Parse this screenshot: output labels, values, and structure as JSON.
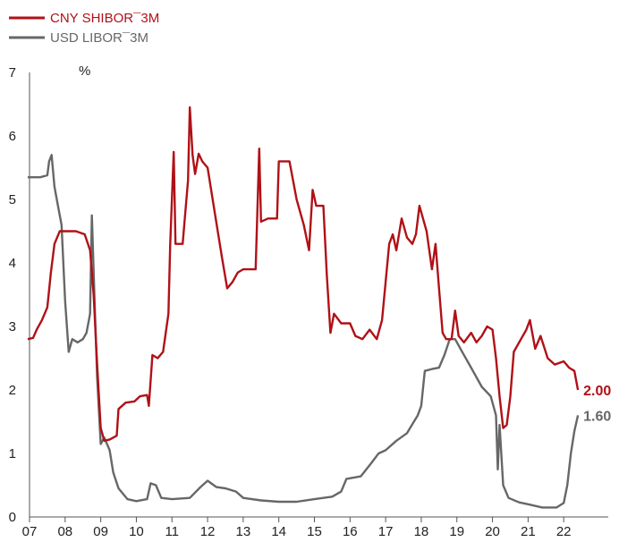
{
  "chart_data": {
    "type": "line",
    "ylabel": "%",
    "ylim": [
      0,
      7
    ],
    "xlim": [
      2007.0,
      2023.0
    ],
    "yticks": [
      "0",
      "1",
      "2",
      "3",
      "4",
      "5",
      "6",
      "7"
    ],
    "xticks": [
      {
        "label": "07",
        "x": 2007.0
      },
      {
        "label": "08",
        "x": 2008.0
      },
      {
        "label": "09",
        "x": 2009.0
      },
      {
        "label": "10",
        "x": 2010.0
      },
      {
        "label": "11",
        "x": 2011.0
      },
      {
        "label": "12",
        "x": 2012.0
      },
      {
        "label": "13",
        "x": 2013.0
      },
      {
        "label": "14",
        "x": 2014.0
      },
      {
        "label": "15",
        "x": 2015.0
      },
      {
        "label": "16",
        "x": 2016.0
      },
      {
        "label": "17",
        "x": 2017.0
      },
      {
        "label": "18",
        "x": 2018.0
      },
      {
        "label": "19",
        "x": 2019.0
      },
      {
        "label": "20",
        "x": 2020.0
      },
      {
        "label": "21",
        "x": 2021.0
      },
      {
        "label": "22",
        "x": 2022.0
      }
    ],
    "grid": false,
    "legend_position": "top-left",
    "series": [
      {
        "name": "CNY SHIBOR¯3M",
        "color": "#b01117",
        "end_label": "2.00",
        "points": [
          [
            2006.95,
            2.8
          ],
          [
            2007.1,
            2.82
          ],
          [
            2007.2,
            2.95
          ],
          [
            2007.35,
            3.1
          ],
          [
            2007.5,
            3.3
          ],
          [
            2007.6,
            3.85
          ],
          [
            2007.7,
            4.3
          ],
          [
            2007.85,
            4.5
          ],
          [
            2008.0,
            4.5
          ],
          [
            2008.3,
            4.5
          ],
          [
            2008.55,
            4.45
          ],
          [
            2008.7,
            4.2
          ],
          [
            2008.8,
            3.5
          ],
          [
            2008.9,
            2.4
          ],
          [
            2009.0,
            1.4
          ],
          [
            2009.1,
            1.2
          ],
          [
            2009.25,
            1.22
          ],
          [
            2009.45,
            1.28
          ],
          [
            2009.5,
            1.7
          ],
          [
            2009.7,
            1.8
          ],
          [
            2009.95,
            1.82
          ],
          [
            2010.1,
            1.9
          ],
          [
            2010.3,
            1.92
          ],
          [
            2010.35,
            1.75
          ],
          [
            2010.45,
            2.55
          ],
          [
            2010.6,
            2.5
          ],
          [
            2010.75,
            2.6
          ],
          [
            2010.9,
            3.2
          ],
          [
            2010.95,
            4.3
          ],
          [
            2011.05,
            5.75
          ],
          [
            2011.1,
            4.3
          ],
          [
            2011.3,
            4.3
          ],
          [
            2011.45,
            5.3
          ],
          [
            2011.5,
            6.45
          ],
          [
            2011.58,
            5.7
          ],
          [
            2011.65,
            5.4
          ],
          [
            2011.75,
            5.72
          ],
          [
            2011.85,
            5.6
          ],
          [
            2012.0,
            5.5
          ],
          [
            2012.2,
            4.8
          ],
          [
            2012.4,
            4.1
          ],
          [
            2012.55,
            3.6
          ],
          [
            2012.7,
            3.7
          ],
          [
            2012.85,
            3.85
          ],
          [
            2013.0,
            3.9
          ],
          [
            2013.2,
            3.9
          ],
          [
            2013.35,
            3.9
          ],
          [
            2013.45,
            5.8
          ],
          [
            2013.5,
            4.65
          ],
          [
            2013.7,
            4.7
          ],
          [
            2013.95,
            4.7
          ],
          [
            2014.0,
            5.6
          ],
          [
            2014.3,
            5.6
          ],
          [
            2014.5,
            5.0
          ],
          [
            2014.7,
            4.6
          ],
          [
            2014.85,
            4.2
          ],
          [
            2014.95,
            5.15
          ],
          [
            2015.05,
            4.9
          ],
          [
            2015.25,
            4.9
          ],
          [
            2015.35,
            3.8
          ],
          [
            2015.45,
            2.9
          ],
          [
            2015.55,
            3.2
          ],
          [
            2015.75,
            3.05
          ],
          [
            2016.0,
            3.05
          ],
          [
            2016.15,
            2.85
          ],
          [
            2016.35,
            2.8
          ],
          [
            2016.55,
            2.95
          ],
          [
            2016.75,
            2.8
          ],
          [
            2016.9,
            3.1
          ],
          [
            2017.0,
            3.7
          ],
          [
            2017.1,
            4.3
          ],
          [
            2017.2,
            4.45
          ],
          [
            2017.3,
            4.2
          ],
          [
            2017.45,
            4.7
          ],
          [
            2017.6,
            4.4
          ],
          [
            2017.75,
            4.3
          ],
          [
            2017.85,
            4.45
          ],
          [
            2017.95,
            4.9
          ],
          [
            2018.05,
            4.7
          ],
          [
            2018.15,
            4.5
          ],
          [
            2018.3,
            3.9
          ],
          [
            2018.4,
            4.3
          ],
          [
            2018.5,
            3.6
          ],
          [
            2018.6,
            2.9
          ],
          [
            2018.7,
            2.8
          ],
          [
            2018.85,
            2.8
          ],
          [
            2018.95,
            3.25
          ],
          [
            2019.05,
            2.85
          ],
          [
            2019.2,
            2.75
          ],
          [
            2019.4,
            2.9
          ],
          [
            2019.55,
            2.75
          ],
          [
            2019.7,
            2.85
          ],
          [
            2019.85,
            3.0
          ],
          [
            2020.0,
            2.95
          ],
          [
            2020.1,
            2.5
          ],
          [
            2020.2,
            1.9
          ],
          [
            2020.3,
            1.4
          ],
          [
            2020.4,
            1.45
          ],
          [
            2020.5,
            1.9
          ],
          [
            2020.6,
            2.6
          ],
          [
            2020.8,
            2.8
          ],
          [
            2020.95,
            2.95
          ],
          [
            2021.05,
            3.1
          ],
          [
            2021.2,
            2.65
          ],
          [
            2021.35,
            2.85
          ],
          [
            2021.55,
            2.5
          ],
          [
            2021.75,
            2.4
          ],
          [
            2022.0,
            2.45
          ],
          [
            2022.15,
            2.35
          ],
          [
            2022.3,
            2.3
          ],
          [
            2022.4,
            2.0
          ]
        ]
      },
      {
        "name": "USD LIBOR¯3M",
        "color": "#676767",
        "end_label": "1.60",
        "points": [
          [
            2006.95,
            5.35
          ],
          [
            2007.3,
            5.35
          ],
          [
            2007.5,
            5.38
          ],
          [
            2007.55,
            5.6
          ],
          [
            2007.62,
            5.7
          ],
          [
            2007.7,
            5.2
          ],
          [
            2007.8,
            4.9
          ],
          [
            2007.9,
            4.6
          ],
          [
            2008.0,
            3.4
          ],
          [
            2008.1,
            2.6
          ],
          [
            2008.2,
            2.8
          ],
          [
            2008.35,
            2.75
          ],
          [
            2008.5,
            2.8
          ],
          [
            2008.6,
            2.9
          ],
          [
            2008.7,
            3.2
          ],
          [
            2008.75,
            4.75
          ],
          [
            2008.82,
            3.5
          ],
          [
            2008.9,
            2.2
          ],
          [
            2009.0,
            1.15
          ],
          [
            2009.1,
            1.25
          ],
          [
            2009.25,
            1.05
          ],
          [
            2009.35,
            0.7
          ],
          [
            2009.5,
            0.45
          ],
          [
            2009.75,
            0.28
          ],
          [
            2010.0,
            0.25
          ],
          [
            2010.3,
            0.28
          ],
          [
            2010.4,
            0.53
          ],
          [
            2010.55,
            0.5
          ],
          [
            2010.7,
            0.3
          ],
          [
            2011.0,
            0.28
          ],
          [
            2011.5,
            0.3
          ],
          [
            2011.8,
            0.47
          ],
          [
            2012.0,
            0.57
          ],
          [
            2012.25,
            0.47
          ],
          [
            2012.5,
            0.45
          ],
          [
            2012.8,
            0.4
          ],
          [
            2013.0,
            0.3
          ],
          [
            2013.5,
            0.26
          ],
          [
            2014.0,
            0.24
          ],
          [
            2014.5,
            0.24
          ],
          [
            2015.0,
            0.28
          ],
          [
            2015.5,
            0.32
          ],
          [
            2015.75,
            0.4
          ],
          [
            2015.9,
            0.6
          ],
          [
            2016.3,
            0.64
          ],
          [
            2016.6,
            0.85
          ],
          [
            2016.8,
            1.0
          ],
          [
            2017.0,
            1.05
          ],
          [
            2017.3,
            1.2
          ],
          [
            2017.6,
            1.32
          ],
          [
            2017.9,
            1.6
          ],
          [
            2018.0,
            1.75
          ],
          [
            2018.1,
            2.3
          ],
          [
            2018.3,
            2.33
          ],
          [
            2018.5,
            2.35
          ],
          [
            2018.65,
            2.55
          ],
          [
            2018.8,
            2.8
          ],
          [
            2018.95,
            2.8
          ],
          [
            2019.15,
            2.6
          ],
          [
            2019.4,
            2.35
          ],
          [
            2019.7,
            2.05
          ],
          [
            2019.95,
            1.9
          ],
          [
            2020.1,
            1.6
          ],
          [
            2020.15,
            0.75
          ],
          [
            2020.2,
            1.45
          ],
          [
            2020.3,
            0.5
          ],
          [
            2020.45,
            0.3
          ],
          [
            2020.75,
            0.23
          ],
          [
            2021.0,
            0.2
          ],
          [
            2021.4,
            0.15
          ],
          [
            2021.8,
            0.15
          ],
          [
            2022.0,
            0.22
          ],
          [
            2022.1,
            0.5
          ],
          [
            2022.2,
            1.0
          ],
          [
            2022.3,
            1.35
          ],
          [
            2022.4,
            1.6
          ]
        ]
      }
    ]
  }
}
